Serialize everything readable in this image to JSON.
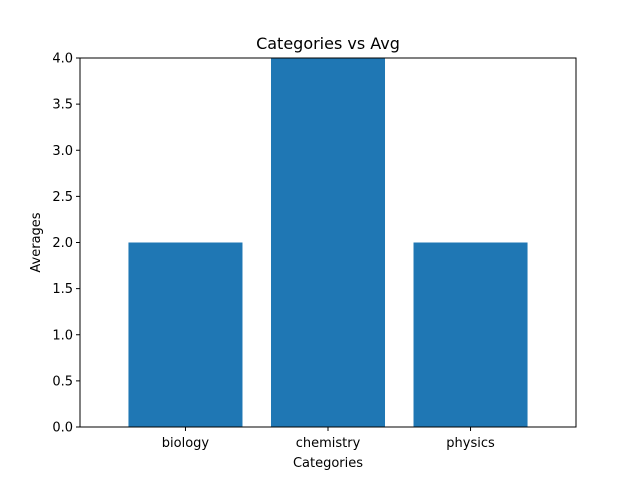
{
  "chart_data": {
    "type": "bar",
    "title": "Categories vs Avg",
    "xlabel": "Categories",
    "ylabel": "Averages",
    "categories": [
      "biology",
      "chemistry",
      "physics"
    ],
    "values": [
      2.0,
      4.0,
      2.0
    ],
    "ylim": [
      0,
      4
    ],
    "yticks": [
      "0.0",
      "0.5",
      "1.0",
      "1.5",
      "2.0",
      "2.5",
      "3.0",
      "3.5",
      "4.0"
    ],
    "bar_color": "#1f77b4",
    "grid": false,
    "legend": false
  }
}
